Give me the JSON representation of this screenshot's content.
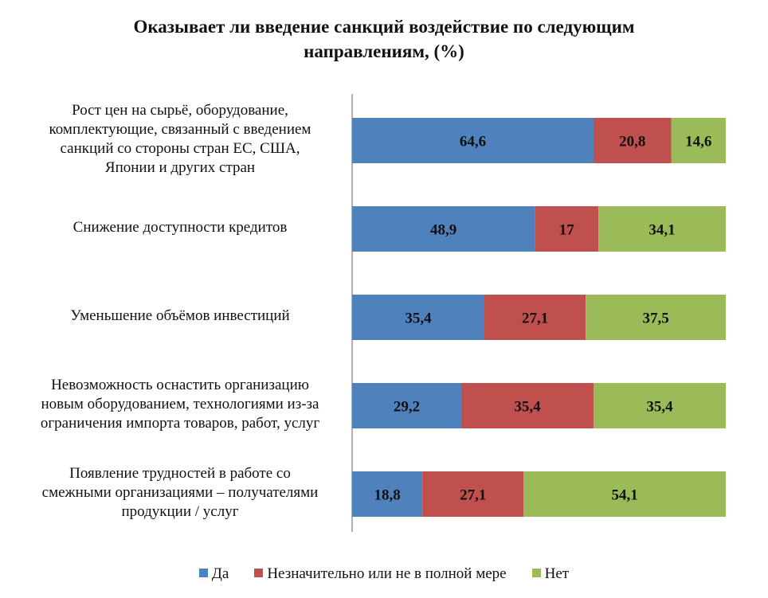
{
  "chart_data": {
    "type": "bar",
    "orientation": "horizontal",
    "stacked": "100%",
    "title": [
      "Оказывает ли введение санкций воздействие по следующим",
      "направлениям, (%)"
    ],
    "categories": [
      [
        "Рост цен на сырьё, оборудование,",
        "комплектующие, связанный с введением",
        "санкций со стороны стран ЕС, США,",
        "Японии и других стран"
      ],
      [
        "Снижение доступности кредитов"
      ],
      [
        "Уменьшение объёмов инвестиций"
      ],
      [
        "Невозможность оснастить организацию",
        "новым оборудованием, технологиями из-за",
        "ограничения импорта товаров, работ, услуг"
      ],
      [
        "Появление трудностей в работе со",
        "смежными организациями – получателями",
        "продукции / услуг"
      ]
    ],
    "series": [
      {
        "name": "Да",
        "color": "#4f81bd",
        "values": [
          64.6,
          48.9,
          35.4,
          29.2,
          18.8
        ],
        "labels": [
          "64,6",
          "48,9",
          "35,4",
          "29,2",
          "18,8"
        ]
      },
      {
        "name": "Незначительно или не в полной мере",
        "color": "#c0504d",
        "values": [
          20.8,
          17,
          27.1,
          35.4,
          27.1
        ],
        "labels": [
          "20,8",
          "17",
          "27,1",
          "35,4",
          "27,1"
        ]
      },
      {
        "name": "Нет",
        "color": "#9bbb59",
        "values": [
          14.6,
          34.1,
          37.5,
          35.4,
          54.1
        ],
        "labels": [
          "14,6",
          "34,1",
          "37,5",
          "35,4",
          "54,1"
        ]
      }
    ],
    "xlim": [
      0,
      100
    ],
    "grid": false,
    "legend": "bottom"
  }
}
